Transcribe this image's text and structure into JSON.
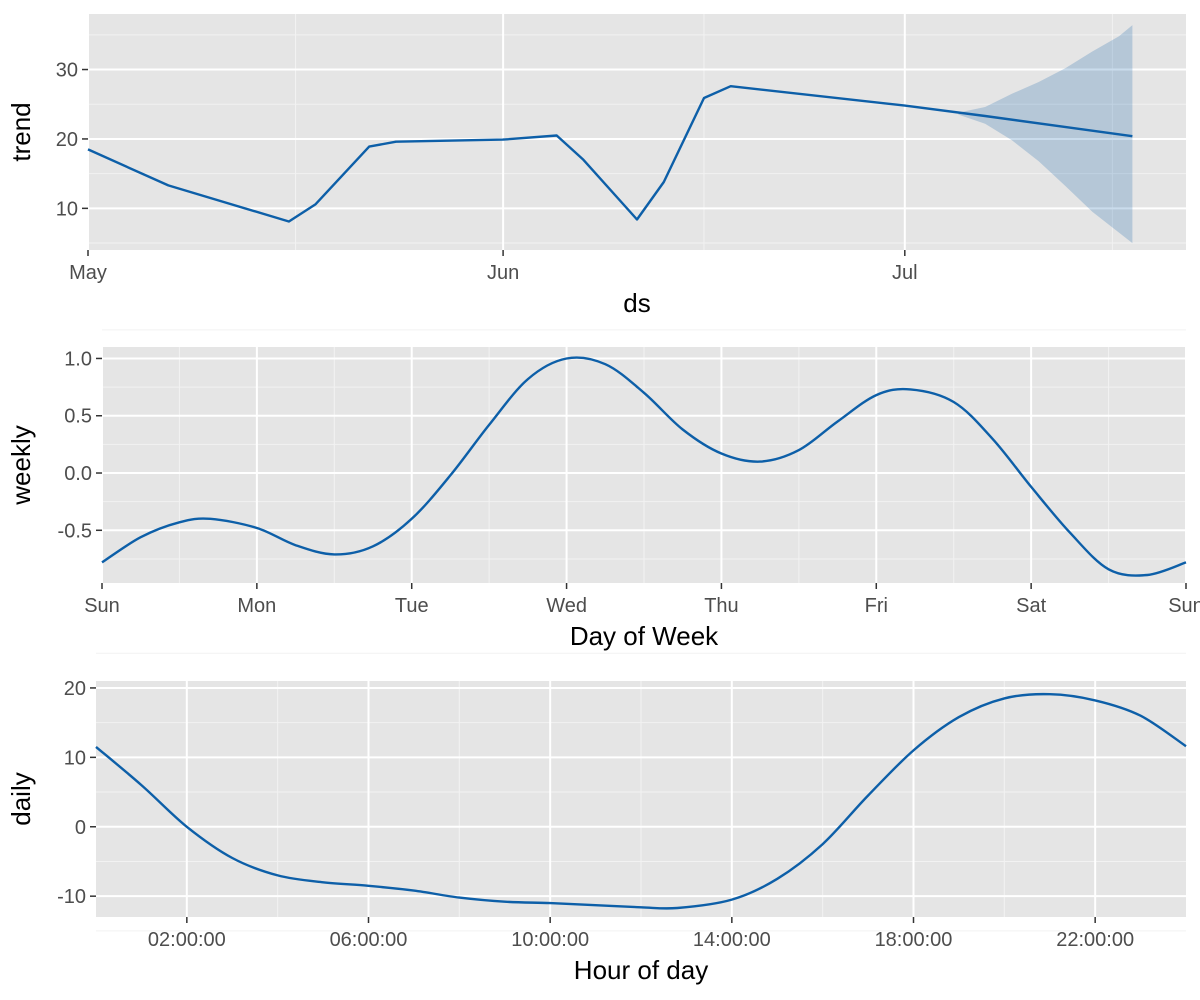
{
  "chart_data": [
    {
      "type": "line",
      "xlabel": "ds",
      "ylabel": "trend",
      "x_axis": "date",
      "xlim": [
        "2019-05-01",
        "2019-07-22"
      ],
      "ylim": [
        4,
        38
      ],
      "x_ticks": [
        {
          "value": "2019-05-01",
          "label": "May"
        },
        {
          "value": "2019-06-01",
          "label": "Jun"
        },
        {
          "value": "2019-07-01",
          "label": "Jul"
        }
      ],
      "y_ticks": [
        10,
        20,
        30
      ],
      "grid": true,
      "series": [
        {
          "x": [
            "2019-05-01",
            "2019-05-07",
            "2019-05-16",
            "2019-05-18",
            "2019-05-22",
            "2019-05-24",
            "2019-06-01",
            "2019-06-05",
            "2019-06-07",
            "2019-06-11",
            "2019-06-13",
            "2019-06-16",
            "2019-06-18",
            "2019-07-01",
            "2019-07-07",
            "2019-07-18"
          ],
          "y": [
            18.5,
            13.3,
            8.1,
            10.6,
            18.9,
            19.6,
            19.9,
            20.5,
            17.0,
            8.4,
            13.8,
            25.9,
            27.6,
            24.8,
            23.3,
            20.4
          ],
          "color": "#0d5fa8"
        }
      ],
      "uncertainty_band": {
        "x": [
          "2019-07-05",
          "2019-07-07",
          "2019-07-09",
          "2019-07-11",
          "2019-07-13",
          "2019-07-15",
          "2019-07-17",
          "2019-07-18"
        ],
        "lower": [
          23.5,
          22.2,
          19.8,
          16.8,
          13.2,
          9.5,
          6.5,
          5.0
        ],
        "upper": [
          23.8,
          24.6,
          26.5,
          28.2,
          30.2,
          32.6,
          34.8,
          36.4
        ],
        "color": "#0d5fa8"
      }
    },
    {
      "type": "line",
      "xlabel": "Day of Week",
      "ylabel": "weekly",
      "xlim": [
        0,
        7
      ],
      "ylim": [
        -0.96,
        1.1
      ],
      "x_ticks": [
        {
          "value": 0,
          "label": "Sun"
        },
        {
          "value": 1,
          "label": "Mon"
        },
        {
          "value": 2,
          "label": "Tue"
        },
        {
          "value": 3,
          "label": "Wed"
        },
        {
          "value": 4,
          "label": "Thu"
        },
        {
          "value": 5,
          "label": "Fri"
        },
        {
          "value": 6,
          "label": "Sat"
        },
        {
          "value": 7,
          "label": "Sun"
        }
      ],
      "y_ticks": [
        {
          "value": 1.0,
          "label": "1.0"
        },
        {
          "value": 0.5,
          "label": "0.5"
        },
        {
          "value": 0.0,
          "label": "0.0"
        },
        {
          "value": -0.5,
          "label": "-0.5"
        }
      ],
      "grid": true,
      "series": [
        {
          "x": [
            0,
            0.25,
            0.5,
            0.7,
            1.0,
            1.25,
            1.5,
            1.75,
            2.0,
            2.25,
            2.5,
            2.75,
            3.0,
            3.25,
            3.5,
            3.75,
            4.0,
            4.25,
            4.5,
            4.75,
            5.0,
            5.22,
            5.5,
            5.75,
            6.0,
            6.25,
            6.5,
            6.75,
            7.0
          ],
          "y": [
            -0.78,
            -0.56,
            -0.43,
            -0.4,
            -0.48,
            -0.63,
            -0.71,
            -0.64,
            -0.4,
            -0.02,
            0.42,
            0.82,
            1.0,
            0.95,
            0.7,
            0.38,
            0.17,
            0.1,
            0.2,
            0.45,
            0.68,
            0.73,
            0.62,
            0.3,
            -0.12,
            -0.52,
            -0.84,
            -0.89,
            -0.78
          ],
          "color": "#0d5fa8"
        }
      ]
    },
    {
      "type": "line",
      "xlabel": "Hour of day",
      "ylabel": "daily",
      "xlim": [
        0,
        24
      ],
      "ylim": [
        -13,
        21
      ],
      "x_ticks": [
        {
          "value": 2,
          "label": "02:00:00"
        },
        {
          "value": 6,
          "label": "06:00:00"
        },
        {
          "value": 10,
          "label": "10:00:00"
        },
        {
          "value": 14,
          "label": "14:00:00"
        },
        {
          "value": 18,
          "label": "18:00:00"
        },
        {
          "value": 22,
          "label": "22:00:00"
        }
      ],
      "y_ticks": [
        {
          "value": 20,
          "label": "20"
        },
        {
          "value": 10,
          "label": "10"
        },
        {
          "value": 0,
          "label": "0"
        },
        {
          "value": -10,
          "label": "-10"
        }
      ],
      "grid": true,
      "series": [
        {
          "x": [
            0,
            1,
            2,
            3,
            4,
            5,
            6,
            7,
            8,
            9,
            10,
            11,
            12,
            12.8,
            14,
            15,
            16,
            17,
            18,
            19,
            20,
            21,
            22,
            23,
            24
          ],
          "y": [
            11.5,
            6.0,
            0.0,
            -4.5,
            -7.0,
            -8.0,
            -8.5,
            -9.2,
            -10.2,
            -10.8,
            -11.0,
            -11.3,
            -11.6,
            -11.7,
            -10.5,
            -7.5,
            -2.5,
            4.5,
            11.0,
            15.8,
            18.5,
            19.1,
            18.2,
            16.0,
            11.6
          ],
          "color": "#0d5fa8"
        }
      ]
    }
  ]
}
